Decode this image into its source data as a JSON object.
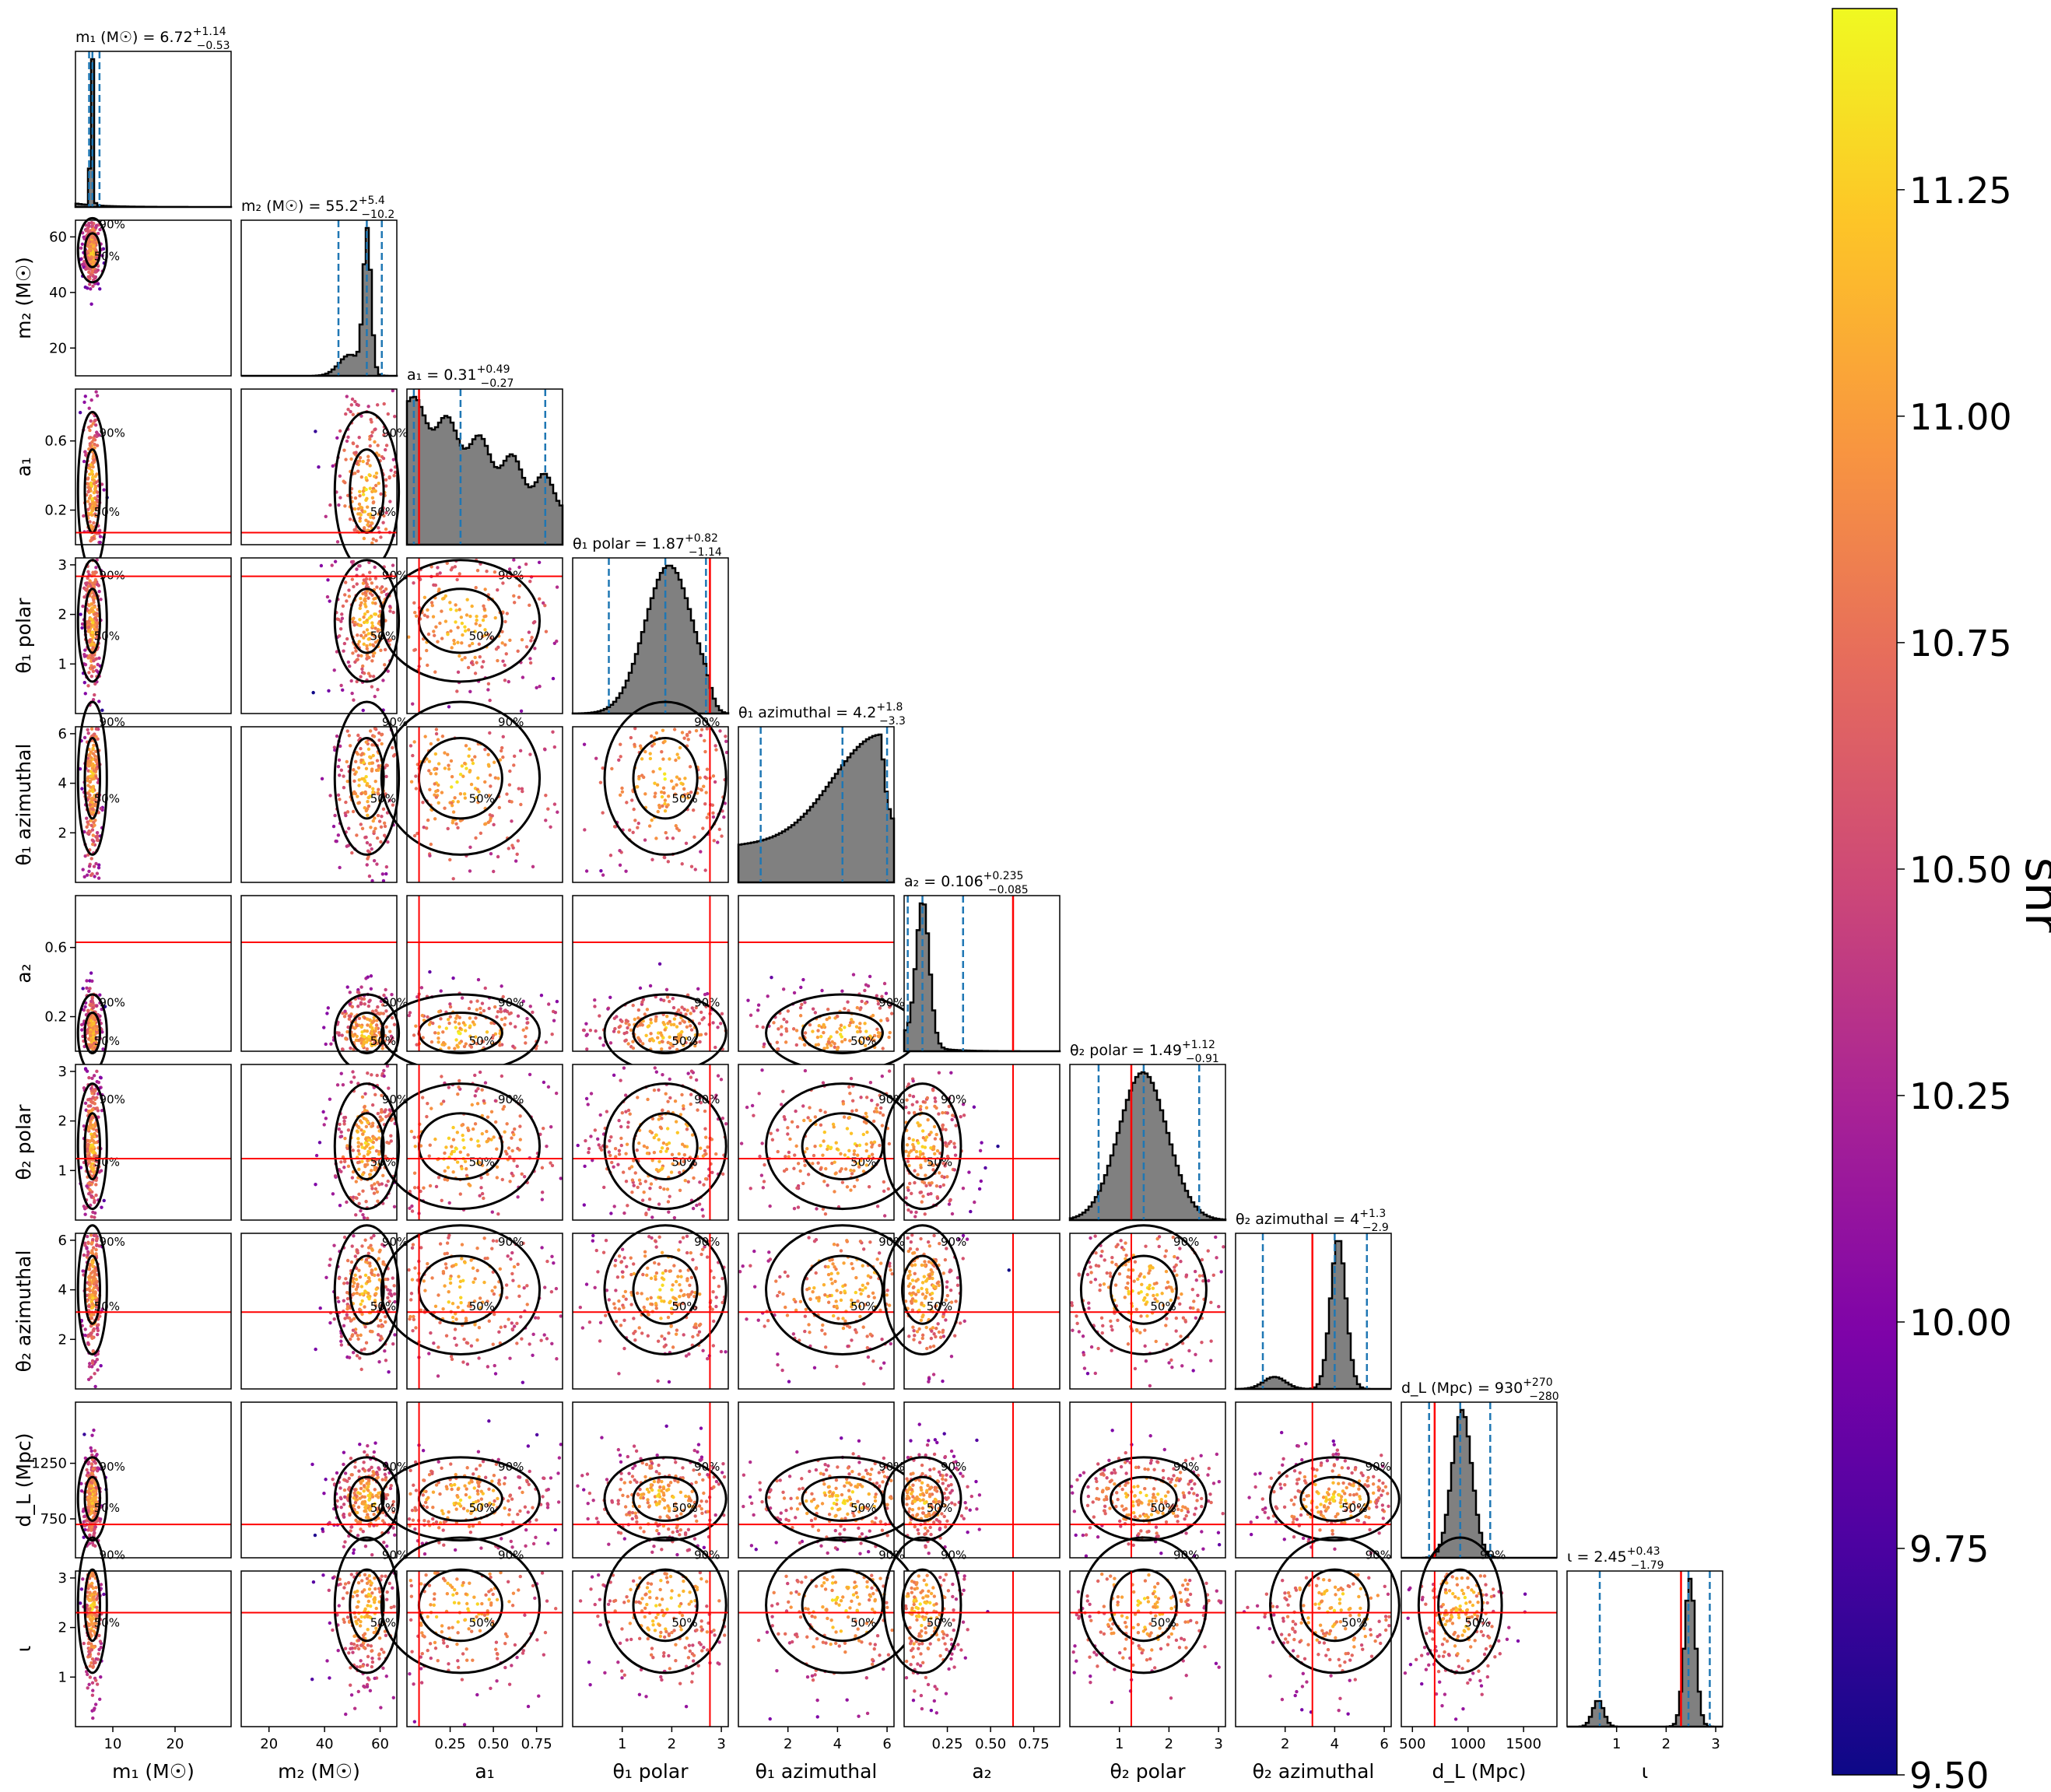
{
  "chart_data": {
    "type": "corner",
    "parameters": [
      {
        "axis_label": "m₁ (M☉)",
        "title_main": "m₁ (M☉) = 6.72",
        "title_sup": "+1.14",
        "title_sub": "−0.53",
        "range": [
          4,
          29
        ],
        "ticks": [
          10,
          20
        ],
        "tick_labels": [
          "10",
          "20"
        ],
        "median": 6.72,
        "lower": 6.19,
        "upper": 7.86,
        "truth": null,
        "hist": "m1"
      },
      {
        "axis_label": "m₂ (M☉)",
        "title_main": "m₂ (M☉) = 55.2",
        "title_sup": "+5.4",
        "title_sub": "−10.2",
        "range": [
          10,
          66
        ],
        "ticks": [
          20,
          40,
          60
        ],
        "tick_labels": [
          "20",
          "40",
          "60"
        ],
        "median": 55.2,
        "lower": 45.0,
        "upper": 60.6,
        "truth": null,
        "hist": "m2"
      },
      {
        "axis_label": "a₁",
        "title_main": "a₁ = 0.31",
        "title_sup": "+0.49",
        "title_sub": "−0.27",
        "range": [
          0.0,
          0.9
        ],
        "ticks": [
          0.25,
          0.5,
          0.75
        ],
        "tick_labels": [
          "0.25",
          "0.50",
          "0.75"
        ],
        "ytick_values": [
          0.2,
          0.6
        ],
        "ytick_labels": [
          "0.2",
          "0.6"
        ],
        "median": 0.31,
        "lower": 0.04,
        "upper": 0.8,
        "truth": 0.07,
        "hist": "a1"
      },
      {
        "axis_label": "θ₁ polar",
        "title_main": "θ₁ polar = 1.87",
        "title_sup": "+0.82",
        "title_sub": "−1.14",
        "range": [
          0.0,
          3.14
        ],
        "ticks": [
          1,
          2,
          3
        ],
        "tick_labels": [
          "1",
          "2",
          "3"
        ],
        "median": 1.87,
        "lower": 0.73,
        "upper": 2.69,
        "truth": 2.77,
        "hist": "t1p"
      },
      {
        "axis_label": "θ₁ azimuthal",
        "title_main": "θ₁ azimuthal = 4.2",
        "title_sup": "+1.8",
        "title_sub": "−3.3",
        "range": [
          0.0,
          6.28
        ],
        "ticks": [
          2,
          4,
          6
        ],
        "tick_labels": [
          "2",
          "4",
          "6"
        ],
        "median": 4.2,
        "lower": 0.9,
        "upper": 6.0,
        "truth": null,
        "hist": "t1a"
      },
      {
        "axis_label": "a₂",
        "title_main": "a₂ = 0.106",
        "title_sup": "+0.235",
        "title_sub": "−0.085",
        "range": [
          0.0,
          0.9
        ],
        "ticks": [
          0.25,
          0.5,
          0.75
        ],
        "tick_labels": [
          "0.25",
          "0.50",
          "0.75"
        ],
        "ytick_values": [
          0.2,
          0.6
        ],
        "ytick_labels": [
          "0.2",
          "0.6"
        ],
        "median": 0.106,
        "lower": 0.021,
        "upper": 0.341,
        "truth": 0.63,
        "hist": "a2"
      },
      {
        "axis_label": "θ₂ polar",
        "title_main": "θ₂ polar = 1.49",
        "title_sup": "+1.12",
        "title_sub": "−0.91",
        "range": [
          0.0,
          3.14
        ],
        "ticks": [
          1,
          2,
          3
        ],
        "tick_labels": [
          "1",
          "2",
          "3"
        ],
        "median": 1.49,
        "lower": 0.58,
        "upper": 2.61,
        "truth": 1.24,
        "hist": "t2p"
      },
      {
        "axis_label": "θ₂ azimuthal",
        "title_main": "θ₂ azimuthal = 4",
        "title_sup": "+1.3",
        "title_sub": "−2.9",
        "range": [
          0.0,
          6.28
        ],
        "ticks": [
          2,
          4,
          6
        ],
        "tick_labels": [
          "2",
          "4",
          "6"
        ],
        "median": 4.0,
        "lower": 1.1,
        "upper": 5.3,
        "truth": 3.1,
        "hist": "t2a"
      },
      {
        "axis_label": "d_L (Mpc)",
        "title_main": "d_L (Mpc) = 930",
        "title_sup": "+270",
        "title_sub": "−280",
        "range": [
          400,
          1800
        ],
        "ticks": [
          500,
          1000,
          1500
        ],
        "tick_labels": [
          "500",
          "1000",
          "1500"
        ],
        "ytick_values": [
          750,
          1250
        ],
        "ytick_labels": [
          "750",
          "1250"
        ],
        "median": 930,
        "lower": 650,
        "upper": 1200,
        "truth": 700,
        "hist": "dl"
      },
      {
        "axis_label": "ι",
        "title_main": "ι = 2.45",
        "title_sup": "+0.43",
        "title_sub": "−1.79",
        "range": [
          0.0,
          3.14
        ],
        "ticks": [
          1,
          2,
          3
        ],
        "tick_labels": [
          "1",
          "2",
          "3"
        ],
        "median": 2.45,
        "lower": 0.66,
        "upper": 2.88,
        "truth": 2.3,
        "hist": null
      }
    ],
    "contour_levels": [
      "50%",
      "90%"
    ],
    "colorbar": {
      "label": "snr",
      "min": 9.5,
      "max": 11.45,
      "ticks": [
        "9.50",
        "9.75",
        "10.00",
        "10.25",
        "10.50",
        "10.75",
        "11.00",
        "11.25"
      ],
      "colormap": "plasma"
    },
    "colors": {
      "quantile_line": "#1f77b4",
      "truth_line": "#ff0000",
      "histogram_fill": "#808080",
      "contour": "#000000"
    }
  }
}
